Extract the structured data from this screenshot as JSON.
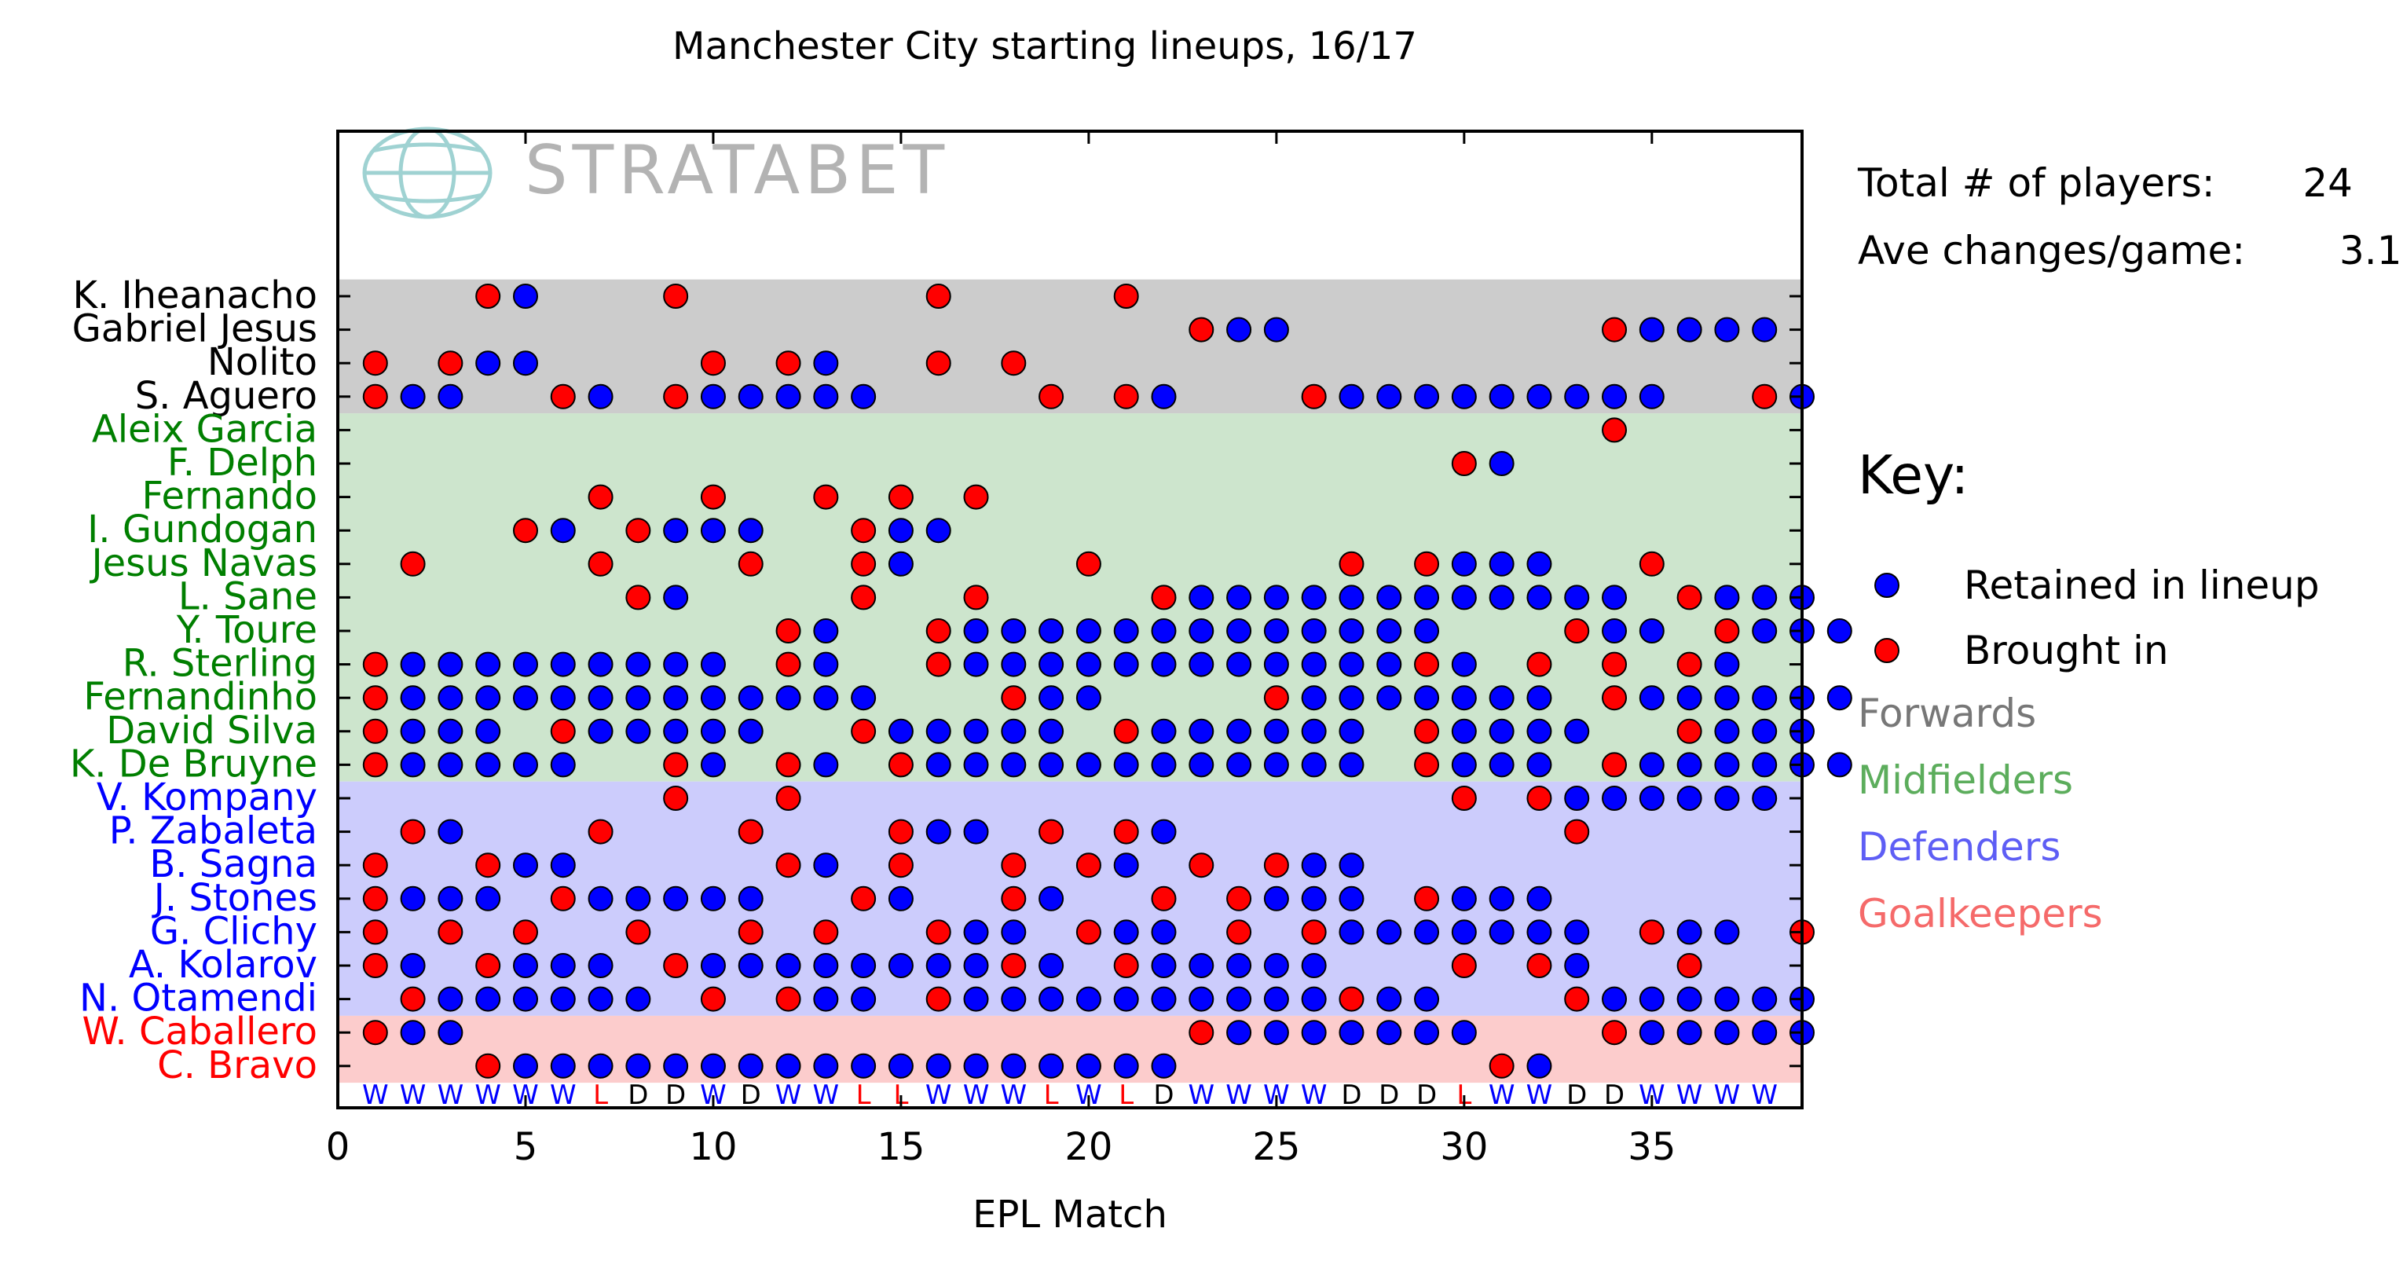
{
  "chart_data": {
    "type": "scatter",
    "title": "Manchester City starting lineups, 16/17",
    "xlabel": "EPL Match",
    "xlim": [
      0,
      39
    ],
    "x_ticks": [
      0,
      5,
      10,
      15,
      20,
      25,
      30,
      35
    ],
    "watermark": "STRATABET",
    "stats": [
      {
        "label": "Total # of players:",
        "value": "24"
      },
      {
        "label": "Ave changes/game:",
        "value": "3.1"
      }
    ],
    "key_title": "Key:",
    "legend": [
      {
        "label": "Retained in lineup",
        "color": "#0000ff"
      },
      {
        "label": "Brought in",
        "color": "#ff0000"
      }
    ],
    "positions": [
      {
        "name": "Forwards",
        "band_color": "#cccccc",
        "label_color": "#000000",
        "key_color": "#777777"
      },
      {
        "name": "Midfielders",
        "band_color": "#cde5cd",
        "label_color": "#007f00",
        "key_color": "#5cad5c"
      },
      {
        "name": "Defenders",
        "band_color": "#ccccfc",
        "label_color": "#0000ff",
        "key_color": "#5e5ef5"
      },
      {
        "name": "Goalkeepers",
        "band_color": "#fccccc",
        "label_color": "#ff0000",
        "key_color": "#f56a6a"
      }
    ],
    "results": [
      "W",
      "W",
      "W",
      "W",
      "W",
      "W",
      "L",
      "D",
      "D",
      "W",
      "D",
      "W",
      "W",
      "L",
      "L",
      "W",
      "W",
      "W",
      "L",
      "W",
      "L",
      "D",
      "W",
      "W",
      "W",
      "W",
      "D",
      "D",
      "D",
      "L",
      "W",
      "W",
      "D",
      "D",
      "W",
      "W",
      "W",
      "W"
    ],
    "result_colors": {
      "W": "#0000ff",
      "D": "#000000",
      "L": "#ff0000"
    },
    "players": [
      {
        "name": "K. Iheanacho",
        "position": "Forwards",
        "row": "...RB...R......R....R.................."
      },
      {
        "name": "Gabriel Jesus",
        "position": "Forwards",
        "row": "......................RBB........RBBBB"
      },
      {
        "name": "Nolito",
        "position": "Forwards",
        "row": "R.RBB....R.RB..R.R...................."
      },
      {
        "name": "S. Aguero",
        "position": "Forwards",
        "row": "RBB..RB.RBBBBB....R.RB...RBBBBBBBBB..RB"
      },
      {
        "name": "Aleix Garcia",
        "position": "Midfielders",
        "row": ".................................R...."
      },
      {
        "name": "F. Delph",
        "position": "Midfielders",
        "row": ".............................RB......."
      },
      {
        "name": "Fernando",
        "position": "Midfielders",
        "row": "......R..R..R.R.R....................."
      },
      {
        "name": "I. Gundogan",
        "position": "Midfielders",
        "row": "....RB.RBBB..RBB......................"
      },
      {
        "name": "Jesus Navas",
        "position": "Midfielders",
        "row": ".R....R...R..RB....R......R.RBBB..R...."
      },
      {
        "name": "L. Sane",
        "position": "Midfielders",
        "row": ".......RB....R..R....RBBBBBBBBBBBB.RBBB"
      },
      {
        "name": "Y. Toure",
        "position": "Midfielders",
        "row": "...........RB..RBBBBBBBBBBBBB...RBB.RBBB"
      },
      {
        "name": "R. Sterling",
        "position": "Midfielders",
        "row": "RBBBBBBBBB.RB..RBBBBBBBBBBBBRB.R.R.RB..."
      },
      {
        "name": "Fernandinho",
        "position": "Midfielders",
        "row": "RBBBBBBBBBBBBB...RBB....RBBBBBBB.RBBBBBB"
      },
      {
        "name": "David Silva",
        "position": "Midfielders",
        "row": "RBBB.RBBBBB..RBBBBB.RBBBBBB.RBBBB..RBBB"
      },
      {
        "name": "K. De Bruyne",
        "position": "Midfielders",
        "row": "RBBBBB..RB.RB.RBBBBBBBBBBBB.RBBB.RBBBBBB"
      },
      {
        "name": "V. Kompany",
        "position": "Defenders",
        "row": "........R..R.................R.RBBBBBB"
      },
      {
        "name": "P. Zabaleta",
        "position": "Defenders",
        "row": ".RB...R...R...RBB.R.RB..........R....."
      },
      {
        "name": "B. Sagna",
        "position": "Defenders",
        "row": "R..RBB.....RB.R..R.RB.R.RBB..........."
      },
      {
        "name": "J. Stones",
        "position": "Defenders",
        "row": "RBBB.RBBBBB..RB..RB..R.RBBB.RBBB......"
      },
      {
        "name": "G. Clichy",
        "position": "Defenders",
        "row": "R.R.R..R..R.R..RBB.RBB.R.RBBBBBBB.RBB.R"
      },
      {
        "name": "A. Kolarov",
        "position": "Defenders",
        "row": "RB.RBBB.RBBBBBBBBRB.RBBBBB...R.RB..R.."
      },
      {
        "name": "N. Otamendi",
        "position": "Defenders",
        "row": ".RBBBBBB.R.RBB.RBBBBBBBBBBRBB...RBBBBBB"
      },
      {
        "name": "W. Caballero",
        "position": "Goalkeepers",
        "row": "RBB...................RBBBBBBB...RBBBBB"
      },
      {
        "name": "C. Bravo",
        "position": "Goalkeepers",
        "row": "...RBBBBBBBBBBBBBBBBBB........RB......."
      }
    ]
  }
}
